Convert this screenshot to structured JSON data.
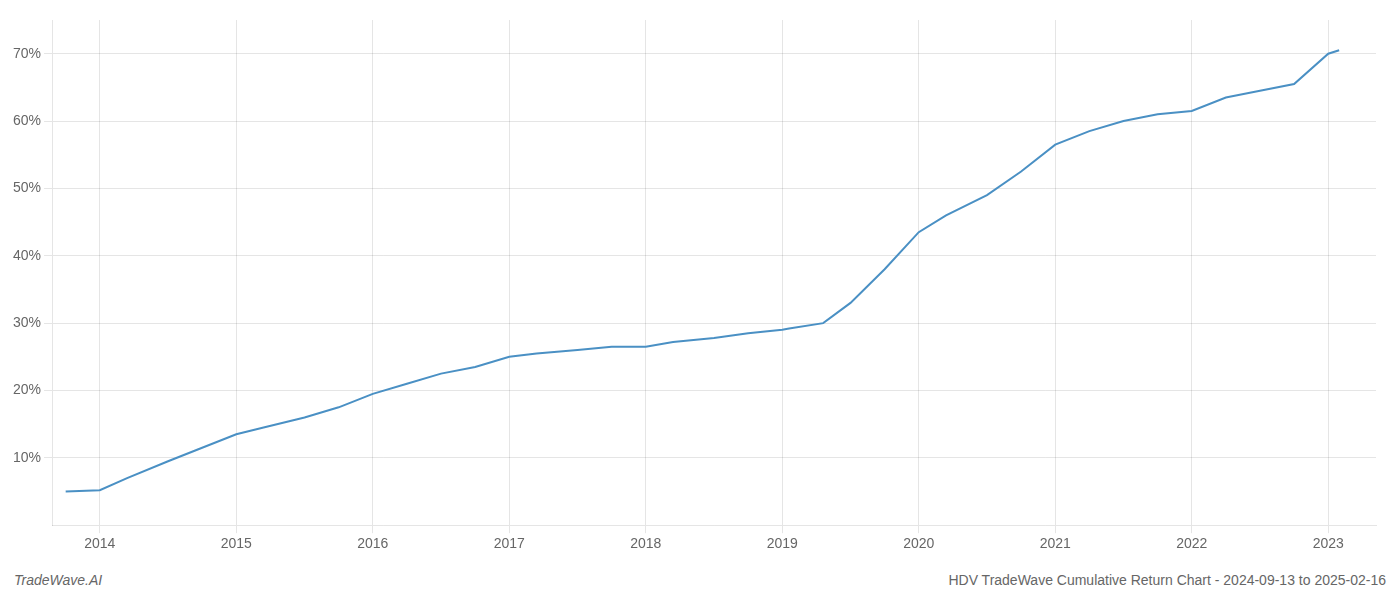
{
  "chart_data": {
    "type": "line",
    "title": "HDV TradeWave Cumulative Return Chart - 2024-09-13 to 2025-02-16",
    "annotations": [
      "TradeWave.AI"
    ],
    "x": [
      2013.75,
      2014.0,
      2014.2,
      2014.5,
      2014.75,
      2015.0,
      2015.2,
      2015.5,
      2015.75,
      2016.0,
      2016.25,
      2016.5,
      2016.75,
      2017.0,
      2017.2,
      2017.5,
      2017.75,
      2018.0,
      2018.2,
      2018.5,
      2018.75,
      2019.0,
      2019.05,
      2019.3,
      2019.5,
      2019.75,
      2020.0,
      2020.2,
      2020.5,
      2020.75,
      2021.0,
      2021.25,
      2021.5,
      2021.75,
      2022.0,
      2022.25,
      2022.5,
      2022.75,
      2023.0,
      2023.08
    ],
    "values": [
      5.0,
      5.2,
      7.0,
      9.5,
      11.5,
      13.5,
      14.5,
      16.0,
      17.5,
      19.5,
      21.0,
      22.5,
      23.5,
      25.0,
      25.5,
      26.0,
      26.5,
      26.5,
      27.2,
      27.8,
      28.5,
      29.0,
      29.2,
      30.0,
      33.0,
      38.0,
      43.5,
      46.0,
      49.0,
      52.5,
      56.5,
      58.5,
      60.0,
      61.0,
      61.5,
      63.5,
      64.5,
      65.5,
      70.0,
      70.5
    ],
    "color": "#4a90c4",
    "xlim": [
      2013.65,
      2023.35
    ],
    "ylim": [
      0,
      75
    ],
    "xticks": [
      2014,
      2015,
      2016,
      2017,
      2018,
      2019,
      2020,
      2021,
      2022,
      2023
    ],
    "yticks": [
      {
        "value": 10,
        "label": "10%"
      },
      {
        "value": 20,
        "label": "20%"
      },
      {
        "value": 30,
        "label": "30%"
      },
      {
        "value": 40,
        "label": "40%"
      },
      {
        "value": 50,
        "label": "50%"
      },
      {
        "value": 60,
        "label": "60%"
      },
      {
        "value": 70,
        "label": "70%"
      }
    ],
    "grid": true
  }
}
